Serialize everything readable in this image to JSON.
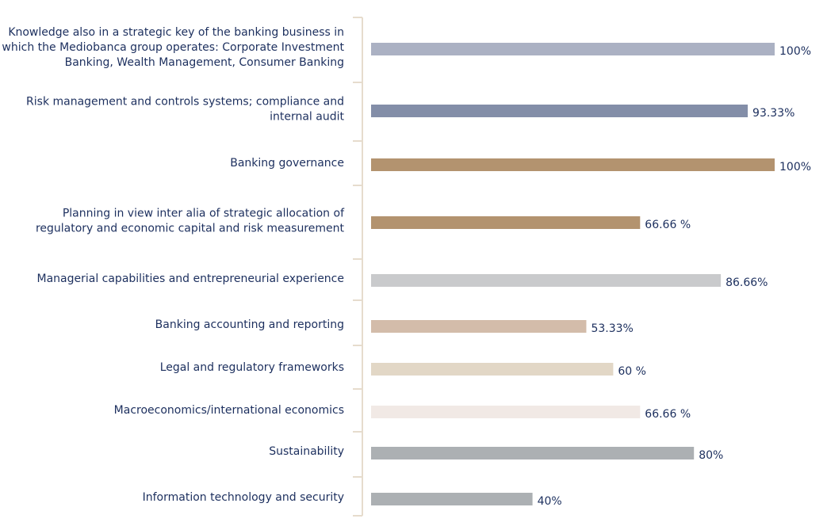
{
  "chart_data": {
    "type": "bar",
    "orientation": "horizontal",
    "categories": [
      "Knowledge also in a strategic key of the banking business in which the Mediobanca group operates: Corporate Investment Banking, Wealth Management, Consumer Banking",
      "Risk management and controls systems; compliance and internal audit",
      "Banking governance",
      "Planning in view inter alia of strategic allocation of regulatory and economic capital and risk measurement",
      "Managerial capabilities and entrepreneurial experience",
      "Banking accounting and reporting",
      "Legal and regulatory frameworks",
      "Macroeconomics/international economics",
      "Sustainability",
      "Information technology and security"
    ],
    "category_lines": [
      [
        "Knowledge also in a strategic key of the banking business in",
        "which the Mediobanca group operates: Corporate Investment",
        "Banking, Wealth Management, Consumer Banking"
      ],
      [
        "Risk management and controls systems; compliance and",
        "internal audit"
      ],
      [
        "Banking governance"
      ],
      [
        "Planning in view inter alia of strategic allocation of",
        "regulatory and economic capital and risk measurement"
      ],
      [
        "Managerial capabilities and entrepreneurial experience"
      ],
      [
        "Banking accounting and reporting"
      ],
      [
        "Legal and regulatory frameworks"
      ],
      [
        "Macroeconomics/international economics"
      ],
      [
        "Sustainability"
      ],
      [
        "Information technology and security"
      ]
    ],
    "values": [
      100,
      93.33,
      100,
      66.66,
      86.66,
      53.33,
      60,
      66.66,
      80,
      40
    ],
    "value_labels": [
      "100%",
      "93.33%",
      "100%",
      "66.66 %",
      "86.66%",
      "53.33%",
      "60 %",
      "66.66 %",
      "80%",
      "40%"
    ],
    "colors": [
      "#abb1c3",
      "#838ea8",
      "#b3936f",
      "#b3936f",
      "#c9cacc",
      "#d3bcaa",
      "#e2d7c6",
      "#f1e9e5",
      "#acb0b3",
      "#acb0b3"
    ],
    "xlim": [
      0,
      100
    ],
    "grid": false,
    "axis_color": "#e6dccd",
    "label_color": "#1c2f5e"
  }
}
